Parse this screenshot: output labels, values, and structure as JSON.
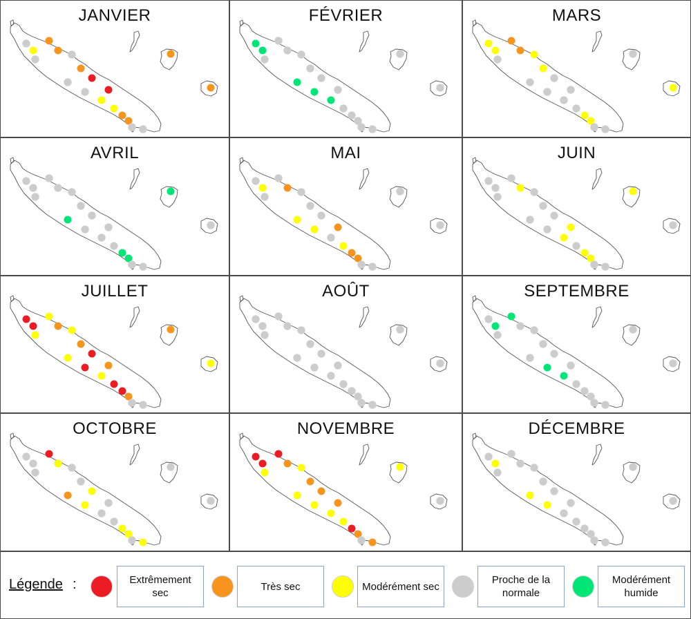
{
  "legend": {
    "title": "Légende",
    "colon": ":",
    "items": [
      {
        "key": "ext",
        "label": "Extrêmement sec",
        "color": "#ec1c24"
      },
      {
        "key": "tres",
        "label": "Très sec",
        "color": "#f7941d"
      },
      {
        "key": "mod",
        "label": "Modérément sec",
        "color": "#ffff00"
      },
      {
        "key": "norm",
        "label": "Proche de la normale",
        "color": "#cccccc"
      },
      {
        "key": "hum",
        "label": "Modérément humide",
        "color": "#00e676"
      }
    ]
  },
  "months": [
    {
      "name": "JANVIER",
      "stations": {
        "a": "norm",
        "b": "mod",
        "c": "tres",
        "d": "tres",
        "e": "norm",
        "f": "norm",
        "g": "tres",
        "h": "ext",
        "i": "norm",
        "j": "norm",
        "k": "ext",
        "l": "mod",
        "m": "mod",
        "n": "tres",
        "o": "tres",
        "p": "norm",
        "q": "norm",
        "lif": "tres",
        "mare": "tres"
      }
    },
    {
      "name": "FÉVRIER",
      "stations": {
        "a": "hum",
        "b": "hum",
        "c": "norm",
        "d": "norm",
        "e": "norm",
        "f": "norm",
        "g": "norm",
        "h": "norm",
        "i": "hum",
        "j": "hum",
        "k": "norm",
        "l": "hum",
        "m": "norm",
        "n": "norm",
        "o": "norm",
        "p": "norm",
        "q": "norm",
        "lif": "norm",
        "mare": "norm"
      }
    },
    {
      "name": "MARS",
      "stations": {
        "a": "mod",
        "b": "mod",
        "c": "tres",
        "d": "tres",
        "e": "mod",
        "f": "norm",
        "g": "mod",
        "h": "norm",
        "i": "norm",
        "j": "norm",
        "k": "norm",
        "l": "norm",
        "m": "norm",
        "n": "mod",
        "o": "mod",
        "p": "norm",
        "q": "norm",
        "lif": "norm",
        "mare": "mod"
      }
    },
    {
      "name": "AVRIL",
      "stations": {
        "a": "norm",
        "b": "norm",
        "c": "norm",
        "d": "norm",
        "e": "norm",
        "f": "norm",
        "g": "norm",
        "h": "norm",
        "i": "hum",
        "j": "norm",
        "k": "norm",
        "l": "norm",
        "m": "norm",
        "n": "hum",
        "o": "hum",
        "p": "norm",
        "q": "norm",
        "lif": "hum",
        "mare": "norm"
      }
    },
    {
      "name": "MAI",
      "stations": {
        "a": "norm",
        "b": "mod",
        "c": "norm",
        "d": "tres",
        "e": "norm",
        "f": "norm",
        "g": "norm",
        "h": "norm",
        "i": "mod",
        "j": "mod",
        "k": "tres",
        "l": "norm",
        "m": "mod",
        "n": "tres",
        "o": "tres",
        "p": "norm",
        "q": "norm",
        "lif": "norm",
        "mare": "norm"
      }
    },
    {
      "name": "JUIN",
      "stations": {
        "a": "norm",
        "b": "norm",
        "c": "norm",
        "d": "mod",
        "e": "norm",
        "f": "norm",
        "g": "norm",
        "h": "norm",
        "i": "norm",
        "j": "norm",
        "k": "mod",
        "l": "mod",
        "m": "norm",
        "n": "mod",
        "o": "mod",
        "p": "norm",
        "q": "norm",
        "lif": "mod",
        "mare": "norm"
      }
    },
    {
      "name": "JUILLET",
      "stations": {
        "a": "ext",
        "b": "ext",
        "c": "mod",
        "d": "tres",
        "e": "mod",
        "f": "mod",
        "g": "tres",
        "h": "ext",
        "i": "mod",
        "j": "ext",
        "k": "tres",
        "l": "mod",
        "m": "ext",
        "n": "ext",
        "o": "tres",
        "p": "norm",
        "q": "norm",
        "lif": "tres",
        "mare": "mod"
      }
    },
    {
      "name": "AOÛT",
      "stations": {
        "a": "norm",
        "b": "norm",
        "c": "norm",
        "d": "norm",
        "e": "norm",
        "f": "norm",
        "g": "norm",
        "h": "norm",
        "i": "norm",
        "j": "norm",
        "k": "norm",
        "l": "norm",
        "m": "norm",
        "n": "norm",
        "o": "norm",
        "p": "norm",
        "q": "norm",
        "lif": "norm",
        "mare": "norm"
      }
    },
    {
      "name": "SEPTEMBRE",
      "stations": {
        "a": "norm",
        "b": "hum",
        "c": "hum",
        "d": "norm",
        "e": "norm",
        "f": "norm",
        "g": "norm",
        "h": "norm",
        "i": "norm",
        "j": "hum",
        "k": "norm",
        "l": "hum",
        "m": "norm",
        "n": "norm",
        "o": "norm",
        "p": "norm",
        "q": "norm",
        "lif": "norm",
        "mare": "norm"
      }
    },
    {
      "name": "OCTOBRE",
      "stations": {
        "a": "norm",
        "b": "norm",
        "c": "ext",
        "d": "mod",
        "e": "norm",
        "f": "norm",
        "g": "norm",
        "h": "mod",
        "i": "tres",
        "j": "mod",
        "k": "norm",
        "l": "norm",
        "m": "norm",
        "n": "mod",
        "o": "mod",
        "p": "mod",
        "q": "norm",
        "lif": "norm",
        "mare": "norm"
      }
    },
    {
      "name": "NOVEMBRE",
      "stations": {
        "a": "ext",
        "b": "ext",
        "c": "ext",
        "d": "tres",
        "e": "mod",
        "f": "mod",
        "g": "tres",
        "h": "tres",
        "i": "mod",
        "j": "mod",
        "k": "tres",
        "l": "mod",
        "m": "mod",
        "n": "ext",
        "o": "tres",
        "p": "tres",
        "q": "norm",
        "lif": "mod",
        "mare": "norm"
      }
    },
    {
      "name": "DÉCEMBRE",
      "stations": {
        "a": "norm",
        "b": "mod",
        "c": "norm",
        "d": "norm",
        "e": "norm",
        "f": "norm",
        "g": "norm",
        "h": "norm",
        "i": "mod",
        "j": "mod",
        "k": "norm",
        "l": "norm",
        "m": "norm",
        "n": "norm",
        "o": "norm",
        "p": "norm",
        "q": "norm",
        "lif": "norm",
        "mare": "norm"
      }
    }
  ]
}
